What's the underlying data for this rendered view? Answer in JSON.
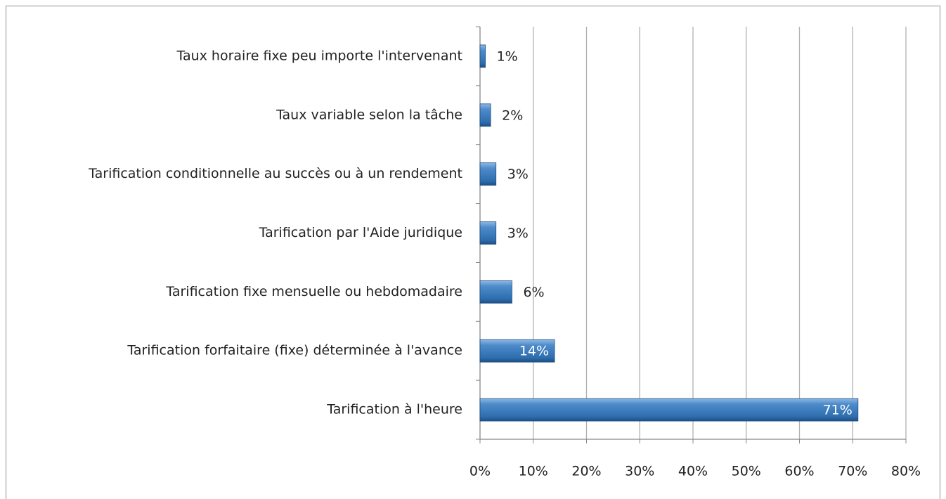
{
  "chart_data": {
    "type": "bar",
    "orientation": "horizontal",
    "categories": [
      "Taux horaire fixe peu importe l'intervenant",
      "Taux variable selon la tâche",
      "Tarification conditionnelle au succès ou à un rendement",
      "Tarification par l'Aide juridique",
      "Tarification fixe mensuelle ou hebdomadaire",
      "Tarification forfaitaire (fixe) déterminée à l'avance",
      "Tarification à l'heure"
    ],
    "values": [
      1,
      2,
      3,
      3,
      6,
      14,
      71
    ],
    "value_labels": [
      "1%",
      "2%",
      "3%",
      "3%",
      "6%",
      "14%",
      "71%"
    ],
    "color": "#3f7fc0",
    "xlim": [
      0,
      80
    ],
    "xticks": [
      {
        "value": 0,
        "label": "0%"
      },
      {
        "value": 10,
        "label": "10%"
      },
      {
        "value": 20,
        "label": "20%"
      },
      {
        "value": 30,
        "label": "30%"
      },
      {
        "value": 40,
        "label": "40%"
      },
      {
        "value": 50,
        "label": "50%"
      },
      {
        "value": 60,
        "label": "60%"
      },
      {
        "value": 70,
        "label": "70%"
      },
      {
        "value": 80,
        "label": "80%"
      }
    ],
    "grid": true
  }
}
